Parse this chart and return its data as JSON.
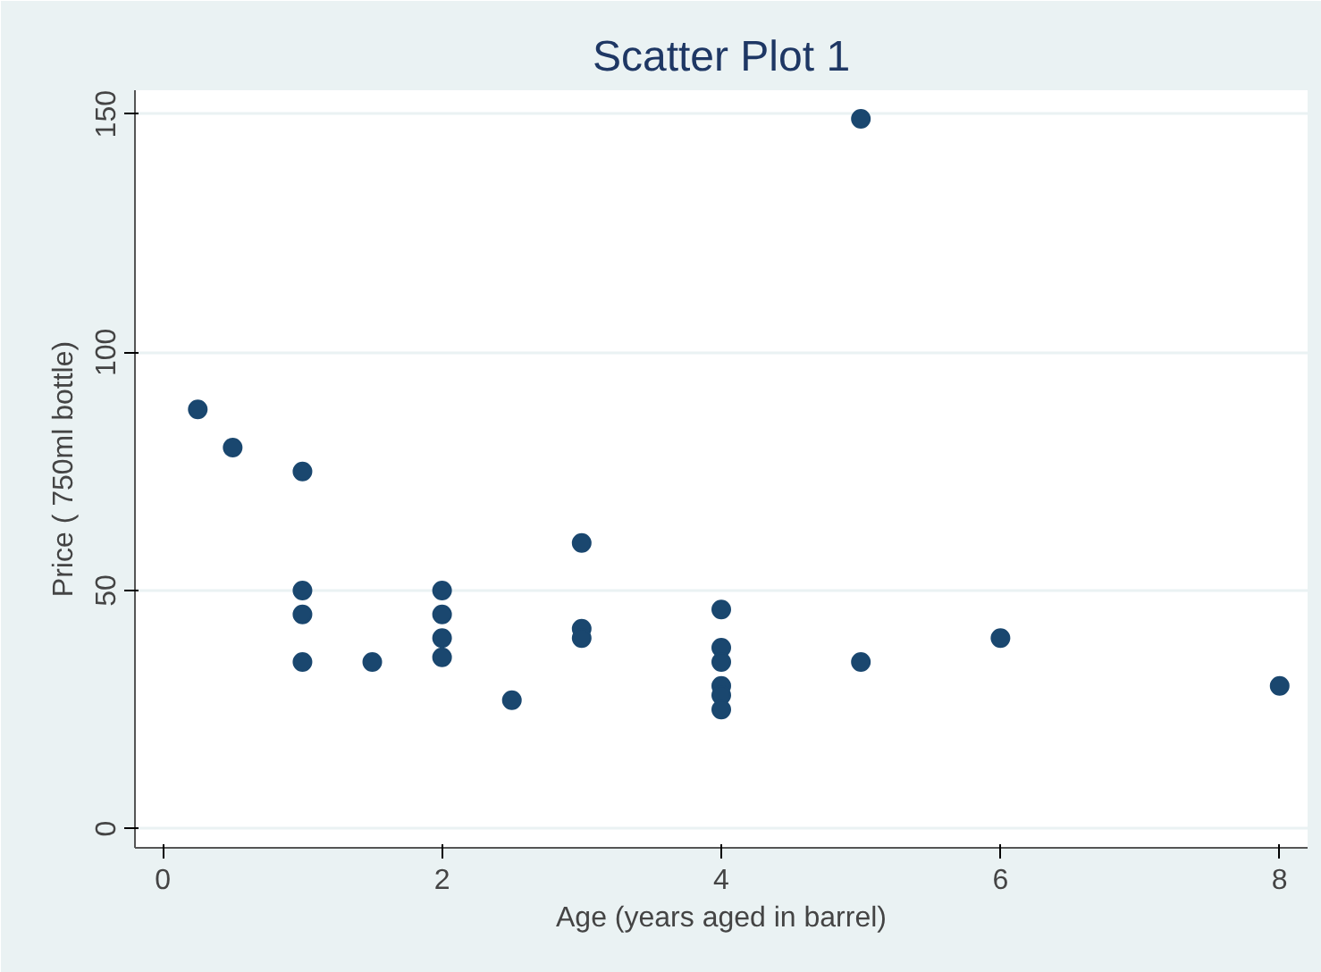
{
  "chart_data": {
    "type": "scatter",
    "title": "Scatter Plot 1",
    "xlabel": "Age (years aged in barrel)",
    "ylabel": "Price ( 750ml bottle)",
    "series": [
      {
        "color": "#1a476f",
        "x": [
          0.25,
          0.5,
          1,
          1,
          1,
          1,
          1.5,
          2,
          2,
          2,
          2,
          2.5,
          3,
          3,
          3,
          4,
          4,
          4,
          4,
          4,
          4,
          5,
          5,
          6,
          8
        ],
        "values": [
          88,
          80,
          75,
          50,
          45,
          35,
          35,
          50,
          45,
          40,
          36,
          27,
          60,
          42,
          40,
          46,
          38,
          35,
          30,
          28,
          25,
          149,
          35,
          40,
          30
        ]
      }
    ],
    "xlim": [
      -0.2,
      8.2
    ],
    "ylim": [
      -4,
      155
    ],
    "xticks": [
      0,
      2,
      4,
      6,
      8
    ],
    "yticks": [
      0,
      50,
      100,
      150
    ],
    "grid": "y",
    "marker": "circle"
  }
}
